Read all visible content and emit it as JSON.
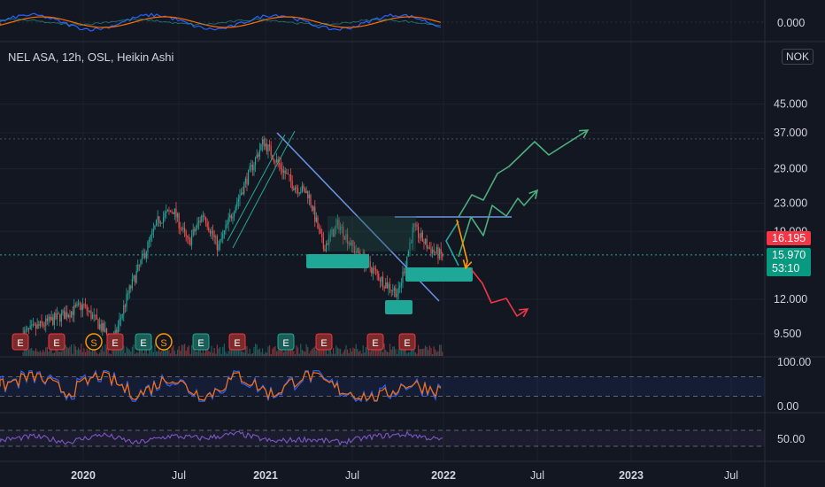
{
  "legend": "NEL ASA, 12h, OSL, Heikin Ashi",
  "currency": "NOK",
  "price_tags": {
    "red": "16.195",
    "green": "15.970",
    "countdown": "53:10"
  },
  "colors": {
    "up": "#26a69a",
    "down": "#ef5350",
    "bg": "#131722",
    "grid": "#1e222d",
    "trend": "#6c95e0",
    "zone": "#1fa897",
    "dotted": "#4c525e",
    "stoch_k": "#2962ff",
    "stoch_d": "#ff6d00",
    "rsi": "#7e57c2"
  },
  "chart_data": [
    {
      "type": "candlestick",
      "title": "NEL ASA, 12h, OSL, Heikin Ashi",
      "x_ticks": [
        "2020",
        "Jul",
        "2021",
        "Jul",
        "2022",
        "Jul",
        "2023",
        "Jul"
      ],
      "y_ticks": [
        "45.000",
        "37.000",
        "29.000",
        "23.000",
        "19.000",
        "12.000",
        "9.500"
      ],
      "y_scale": "log",
      "ylim": [
        8,
        55
      ],
      "last_price": 16.195,
      "current_price": 15.97,
      "approx_path": [
        {
          "x": "2019-09",
          "y": 9.5
        },
        {
          "x": "2020-01",
          "y": 11.5
        },
        {
          "x": "2020-03",
          "y": 9.0
        },
        {
          "x": "2020-04",
          "y": 12.5
        },
        {
          "x": "2020-06",
          "y": 20.5
        },
        {
          "x": "2020-07",
          "y": 22.0
        },
        {
          "x": "2020-08",
          "y": 17.5
        },
        {
          "x": "2020-09",
          "y": 21.5
        },
        {
          "x": "2020-10",
          "y": 17.0
        },
        {
          "x": "2020-11",
          "y": 22.0
        },
        {
          "x": "2021-01",
          "y": 35.0
        },
        {
          "x": "2021-02",
          "y": 30.0
        },
        {
          "x": "2021-03",
          "y": 26.0
        },
        {
          "x": "2021-04",
          "y": 24.5
        },
        {
          "x": "2021-05",
          "y": 17.0
        },
        {
          "x": "2021-06",
          "y": 20.0
        },
        {
          "x": "2021-07",
          "y": 17.0
        },
        {
          "x": "2021-09",
          "y": 13.5
        },
        {
          "x": "2021-10",
          "y": 12.5
        },
        {
          "x": "2021-11",
          "y": 19.5
        },
        {
          "x": "2021-12",
          "y": 17.0
        },
        {
          "x": "2022-01",
          "y": 16.0
        }
      ],
      "annotations": {
        "horizontal_levels": [
          35.5,
          16.2
        ],
        "event_markers": [
          "E",
          "E",
          "S",
          "E",
          "E",
          "S",
          "E",
          "E",
          "E",
          "E",
          "E",
          "E",
          "E"
        ],
        "projections": [
          "bullish arrow to ~35",
          "bullish arrow to ~23",
          "bearish arrow to ~11"
        ]
      }
    },
    {
      "type": "line",
      "title": "",
      "y_ticks": [
        "100.00",
        "0.00"
      ],
      "ylim": [
        0,
        100
      ],
      "bands": [
        20,
        80
      ],
      "series": [
        {
          "values": [
            50,
            85,
            30,
            90,
            20,
            80,
            15,
            85,
            25,
            90,
            40,
            10,
            60,
            35
          ]
        }
      ]
    },
    {
      "type": "line",
      "title": "",
      "y_ticks": [
        "50.00"
      ],
      "ylim": [
        20,
        80
      ],
      "bands": [
        30,
        70
      ],
      "series": [
        {
          "values": [
            45,
            55,
            40,
            60,
            38,
            56,
            50,
            62,
            42,
            48,
            40,
            55,
            60,
            45
          ]
        }
      ]
    },
    {
      "type": "line",
      "title": "",
      "y_ticks": [
        "0.000"
      ],
      "series": []
    }
  ]
}
